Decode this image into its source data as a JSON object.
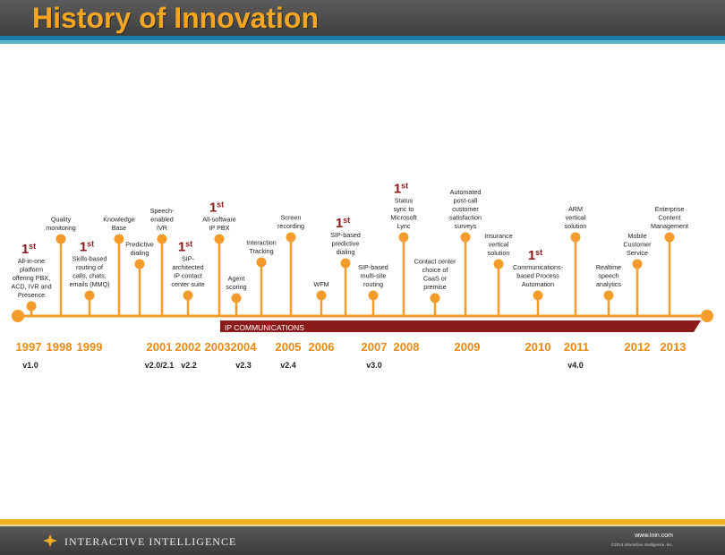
{
  "title": "History of Innovation",
  "ip_band_label": "IP COMMUNICATIONS",
  "colors": {
    "accent": "#f5a623",
    "marker": "#f39c2c",
    "band": "#8b1a1a",
    "year": "#e98a14",
    "first": "#8b1a1a"
  },
  "years": [
    "1997",
    "1998",
    "1999",
    "2001",
    "2002",
    "2003",
    "2004",
    "2005",
    "2006",
    "2007",
    "2008",
    "2009",
    "2010",
    "2011",
    "2012",
    "2013"
  ],
  "versions": [
    "v1.0",
    "v2.0/2.1",
    "v2.2",
    "v2.3",
    "v2.4",
    "v3.0",
    "v4.0"
  ],
  "first_mark": {
    "num": "1",
    "sup": "st"
  },
  "events": [
    {
      "id": "all-in-one",
      "lines": [
        "All-in-one",
        "platform",
        "offering PBX,",
        "ACD, IVR and",
        "Presence"
      ],
      "first": true
    },
    {
      "id": "quality",
      "lines": [
        "Quality",
        "monitoring"
      ],
      "first": false
    },
    {
      "id": "skills",
      "lines": [
        "Skills-based",
        "routing of",
        "calls, chats,",
        "emails (MMQ)"
      ],
      "first": true
    },
    {
      "id": "kb",
      "lines": [
        "Knowledge",
        "Base"
      ],
      "first": false
    },
    {
      "id": "predictive",
      "lines": [
        "Predictive",
        "dialing"
      ],
      "first": false
    },
    {
      "id": "speech-ivr",
      "lines": [
        "Speech-",
        "enabled",
        "IVR"
      ],
      "first": false
    },
    {
      "id": "sip-cc",
      "lines": [
        "SIP-",
        "architected",
        "IP contact",
        "center suite"
      ],
      "first": true
    },
    {
      "id": "ippbx",
      "lines": [
        "All-software",
        "IP PBX"
      ],
      "first": true
    },
    {
      "id": "agent",
      "lines": [
        "Agent",
        "scoring"
      ],
      "first": false
    },
    {
      "id": "tracking",
      "lines": [
        "Interaction",
        "Tracking"
      ],
      "first": false
    },
    {
      "id": "screen",
      "lines": [
        "Screen",
        "recording"
      ],
      "first": false
    },
    {
      "id": "wfm",
      "lines": [
        "WFM"
      ],
      "first": false
    },
    {
      "id": "sip-dial",
      "lines": [
        "SIP-based",
        "predictive",
        "dialing"
      ],
      "first": true
    },
    {
      "id": "multisite",
      "lines": [
        "SIP-based",
        "multi-site",
        "routing"
      ],
      "first": false
    },
    {
      "id": "lync",
      "lines": [
        "Status",
        "sync to",
        "Microsoft",
        "Lync"
      ],
      "first": true
    },
    {
      "id": "caas",
      "lines": [
        "Contact center",
        "choice of",
        "CaaS or",
        "premise"
      ],
      "first": false
    },
    {
      "id": "survey",
      "lines": [
        "Automated",
        "post-call",
        "customer",
        "satisfaction",
        "surveys"
      ],
      "first": false
    },
    {
      "id": "insurance",
      "lines": [
        "Insurance",
        "vertical",
        "solution"
      ],
      "first": false
    },
    {
      "id": "bpa",
      "lines": [
        "Communications-",
        "based Process",
        "Automation"
      ],
      "first": true
    },
    {
      "id": "arm",
      "lines": [
        "ARM",
        "vertical",
        "solution"
      ],
      "first": false
    },
    {
      "id": "speech-analytics",
      "lines": [
        "Realtime",
        "speech",
        "analytics"
      ],
      "first": false
    },
    {
      "id": "mobile",
      "lines": [
        "Mobile",
        "Customer",
        "Service"
      ],
      "first": false
    },
    {
      "id": "ecm",
      "lines": [
        "Enterprise",
        "Content",
        "Management"
      ],
      "first": false
    }
  ],
  "footer": {
    "brand": "INTERACTIVE INTELLIGENCE",
    "url": "www.inin.com",
    "copyright": "©2014 Interactive Intelligence, Inc."
  }
}
